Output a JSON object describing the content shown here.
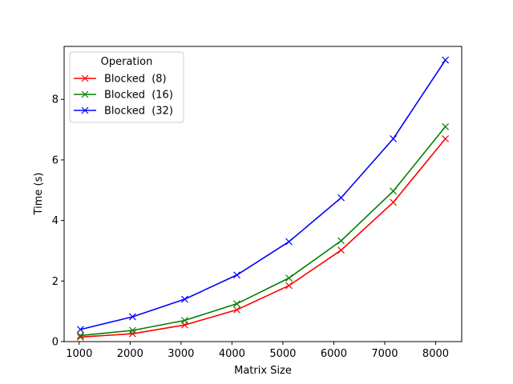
{
  "chart_data": {
    "type": "line",
    "xlabel": "Matrix Size",
    "ylabel": "Time (s)",
    "xlim": [
      704,
      8512
    ],
    "ylim": [
      0,
      9.75
    ],
    "xticks": [
      1000,
      2000,
      3000,
      4000,
      5000,
      6000,
      7000,
      8000
    ],
    "yticks": [
      0,
      2,
      4,
      6,
      8
    ],
    "grid": false,
    "legend": {
      "title": "Operation",
      "placement": "top-left"
    },
    "x": [
      1024,
      2048,
      3072,
      4096,
      5120,
      6144,
      7168,
      8192
    ],
    "series": [
      {
        "name": "Blocked  (8)",
        "color": "#ff0000",
        "marker": "x",
        "values": [
          0.15,
          0.26,
          0.55,
          1.05,
          1.85,
          3.02,
          4.6,
          6.7
        ]
      },
      {
        "name": "Blocked  (16)",
        "color": "#008000",
        "marker": "x",
        "values": [
          0.2,
          0.37,
          0.7,
          1.25,
          2.1,
          3.33,
          4.97,
          7.1
        ]
      },
      {
        "name": "Blocked  (32)",
        "color": "#0000ff",
        "marker": "x",
        "values": [
          0.4,
          0.82,
          1.4,
          2.2,
          3.3,
          4.75,
          6.7,
          9.3
        ]
      }
    ]
  }
}
